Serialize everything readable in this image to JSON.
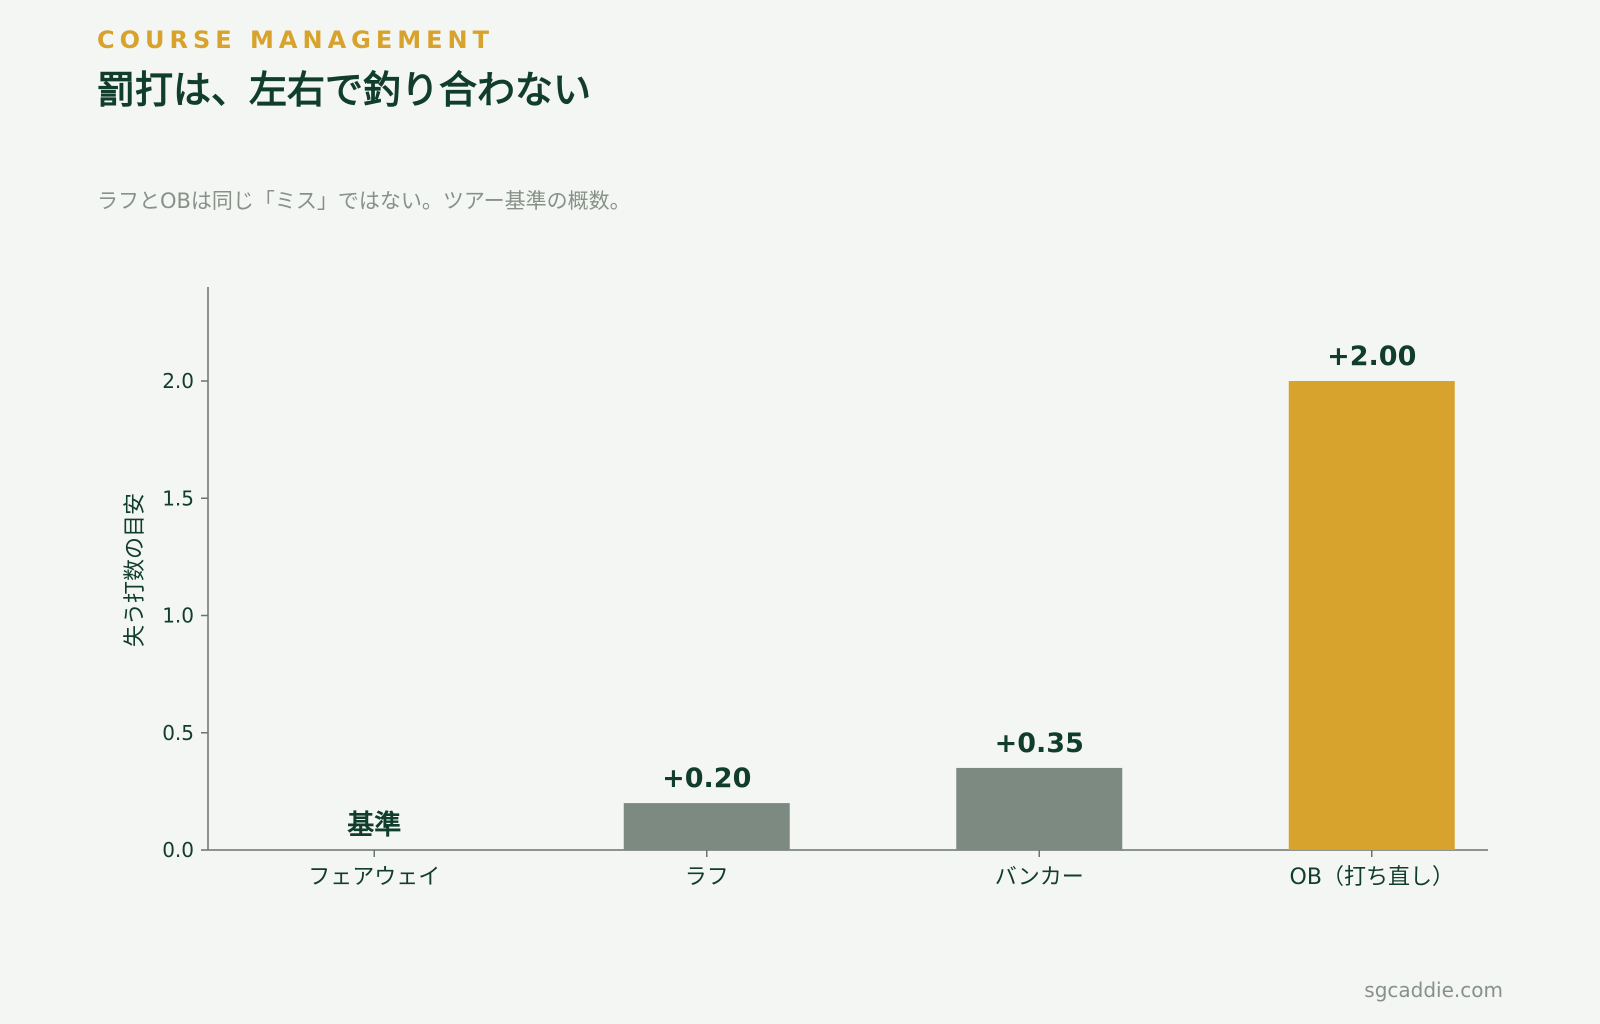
{
  "header": {
    "eyebrow": "COURSE MANAGEMENT",
    "title": "罰打は、左右で釣り合わない",
    "subtitle": "ラフとOBは同じ「ミス」ではない。ツアー基準の概数。"
  },
  "footer": {
    "site": "sgcaddie.com"
  },
  "colors": {
    "background": "#f4f6f3",
    "text_dark": "#113d2c",
    "accent_gold": "#d8a32c",
    "bar_gray": "#7d8a82",
    "muted": "#87918a"
  },
  "chart_data": {
    "type": "bar",
    "categories": [
      "フェアウェイ",
      "ラフ",
      "バンカー",
      "OB（打ち直し）"
    ],
    "values": [
      0,
      0.2,
      0.35,
      2.0
    ],
    "value_labels": [
      "基準",
      "+0.20",
      "+0.35",
      "+2.00"
    ],
    "bar_colors": [
      "#7d8a82",
      "#7d8a82",
      "#7d8a82",
      "#d8a32c"
    ],
    "ylabel": "失う打数の目安",
    "xlabel": "",
    "ylim": [
      0,
      2.4
    ],
    "yticks": [
      0.0,
      0.5,
      1.0,
      1.5,
      2.0
    ],
    "ytick_labels": [
      "0.0",
      "0.5",
      "1.0",
      "1.5",
      "2.0"
    ],
    "grid": false,
    "legend": "none"
  }
}
